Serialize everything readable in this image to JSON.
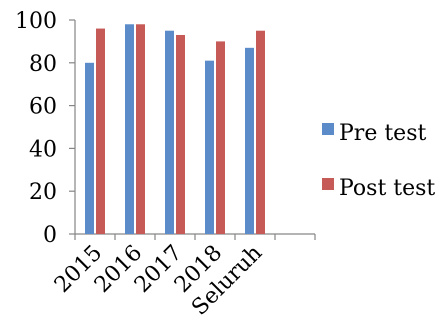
{
  "chart_data": {
    "type": "bar",
    "categories": [
      "2015",
      "2016",
      "2017",
      "2018",
      "Seluruh"
    ],
    "series": [
      {
        "name": "Pre test",
        "values": [
          80,
          98,
          95,
          81,
          87
        ],
        "color": "#5B8BC9"
      },
      {
        "name": "Post test",
        "values": [
          96,
          98,
          93,
          90,
          95
        ],
        "color": "#C65A57"
      }
    ],
    "yticks": [
      "0",
      "20",
      "40",
      "60",
      "80",
      "100"
    ],
    "ylim": [
      0,
      100
    ],
    "slots": 6,
    "title": "",
    "xlabel": "",
    "ylabel": "",
    "grid": false,
    "legend_position": "right"
  }
}
